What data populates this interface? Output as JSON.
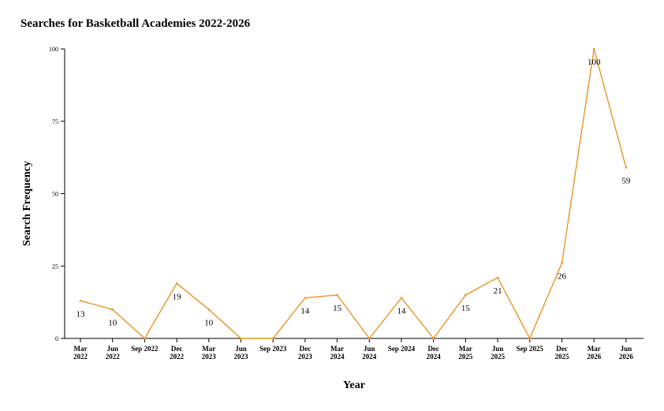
{
  "title": "Searches for Basketball Academies 2022-2026",
  "chart_data": {
    "type": "line",
    "title": "Searches for Basketball Academies 2022-2026",
    "xlabel": "Year",
    "ylabel": "Search Frequency",
    "ylim": [
      0,
      100
    ],
    "yticks": [
      0,
      25,
      50,
      75,
      100
    ],
    "grid": false,
    "line_color": "#E8952A",
    "categories": [
      "Mar 2022",
      "Jun 2022",
      "Sep 2022",
      "Dec 2022",
      "Mar 2023",
      "Jun 2023",
      "Sep 2023",
      "Dec 2023",
      "Mar 2024",
      "Jun 2024",
      "Sep 2024",
      "Dec 2024",
      "Mar 2025",
      "Jun 2025",
      "Sep 2025",
      "Dec 2025",
      "Mar 2026",
      "Jun 2026"
    ],
    "series": [
      {
        "values": [
          13,
          10,
          0,
          19,
          10,
          0,
          0,
          14,
          15,
          0,
          14,
          0,
          15,
          21,
          0,
          26,
          100,
          59
        ],
        "data_labels": [
          "13",
          "10",
          "",
          "19",
          "10",
          "",
          "",
          "14",
          "15",
          "",
          "14",
          "",
          "15",
          "21",
          "",
          "26",
          "100",
          "59"
        ]
      }
    ]
  }
}
